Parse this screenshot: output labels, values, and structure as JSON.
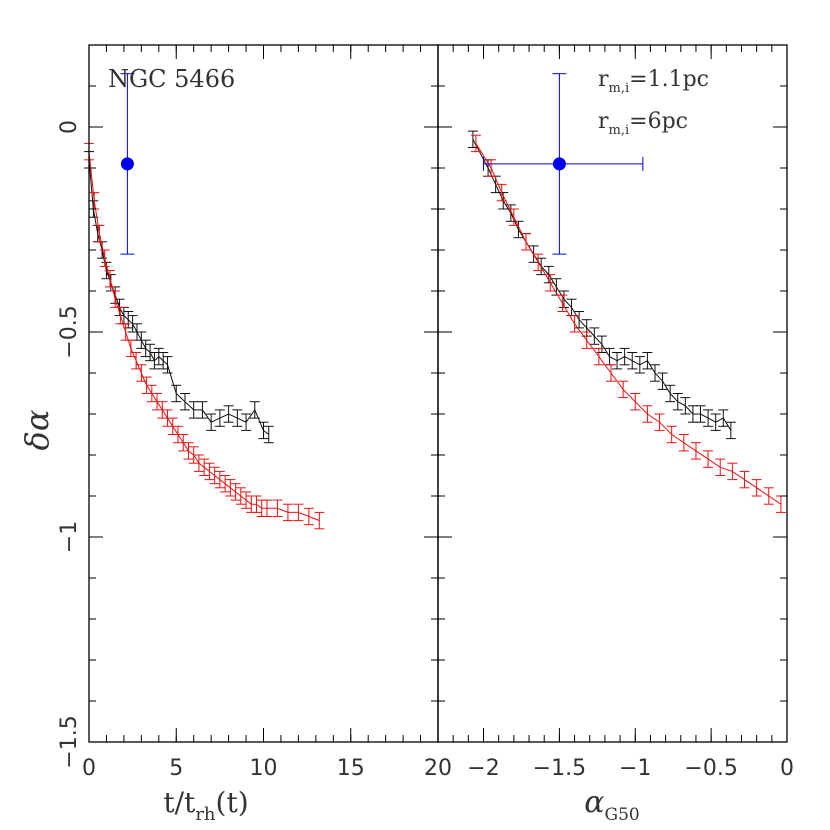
{
  "chart_data": [
    {
      "type": "line",
      "panel": "left",
      "annotation": "NGC 5466",
      "xlabel_main": "t/t",
      "xlabel_sub": "rh",
      "xlabel_tail": "(t)",
      "ylabel_main": "δα",
      "xlim": [
        0,
        20
      ],
      "ylim": [
        -1.5,
        0.2
      ],
      "xticks": [
        0,
        5,
        10,
        15,
        20
      ],
      "yticks": [
        0,
        -0.5,
        -1,
        -1.5
      ],
      "xtick_labels": [
        "0",
        "5",
        "10",
        "15",
        "20"
      ],
      "ytick_labels": [
        "0",
        "−0.5",
        "−1",
        "−1.5"
      ],
      "grid": false,
      "observed_point": {
        "x": 2.2,
        "y": -0.09,
        "yerr_low": 0.22,
        "yerr_high": 0.22,
        "color": "#0000ee"
      },
      "series": [
        {
          "color": "#111111",
          "x": [
            0,
            0.25,
            0.5,
            0.75,
            1.0,
            1.25,
            1.5,
            1.75,
            2.0,
            2.25,
            2.5,
            2.75,
            3.0,
            3.25,
            3.5,
            3.75,
            4.0,
            4.25,
            4.5,
            5.0,
            5.5,
            6.0,
            6.5,
            7.0,
            7.5,
            8.0,
            8.5,
            9.0,
            9.5,
            10.0,
            10.3
          ],
          "y": [
            -0.08,
            -0.2,
            -0.26,
            -0.3,
            -0.35,
            -0.38,
            -0.41,
            -0.44,
            -0.46,
            -0.47,
            -0.48,
            -0.5,
            -0.52,
            -0.54,
            -0.55,
            -0.57,
            -0.56,
            -0.57,
            -0.58,
            -0.65,
            -0.67,
            -0.69,
            -0.69,
            -0.72,
            -0.71,
            -0.7,
            -0.71,
            -0.72,
            -0.69,
            -0.74,
            -0.75
          ],
          "yerr": 0.02
        },
        {
          "color": "#ee1111",
          "x": [
            0,
            0.3,
            0.6,
            0.9,
            1.2,
            1.5,
            1.8,
            2.1,
            2.4,
            2.7,
            3.0,
            3.3,
            3.6,
            3.9,
            4.2,
            4.5,
            4.8,
            5.1,
            5.4,
            5.7,
            6.0,
            6.3,
            6.6,
            6.9,
            7.2,
            7.5,
            7.8,
            8.1,
            8.4,
            8.7,
            9.0,
            9.3,
            9.6,
            9.9,
            10.2,
            10.8,
            11.4,
            12.0,
            12.6,
            13.2
          ],
          "y": [
            -0.06,
            -0.18,
            -0.26,
            -0.32,
            -0.37,
            -0.42,
            -0.46,
            -0.5,
            -0.54,
            -0.57,
            -0.6,
            -0.63,
            -0.65,
            -0.67,
            -0.69,
            -0.71,
            -0.73,
            -0.75,
            -0.77,
            -0.79,
            -0.8,
            -0.82,
            -0.83,
            -0.84,
            -0.85,
            -0.86,
            -0.87,
            -0.88,
            -0.89,
            -0.9,
            -0.91,
            -0.92,
            -0.92,
            -0.93,
            -0.93,
            -0.93,
            -0.94,
            -0.94,
            -0.95,
            -0.96
          ],
          "yerr": 0.02
        }
      ]
    },
    {
      "type": "line",
      "panel": "right",
      "xlabel_main": "α",
      "xlabel_sub": "G50",
      "xlim": [
        -2.3,
        0
      ],
      "ylim": [
        -1.5,
        0.2
      ],
      "xticks": [
        -2,
        -1.5,
        -1,
        -0.5,
        0
      ],
      "xtick_labels": [
        "−2",
        "−1.5",
        "−1",
        "−0.5",
        "0"
      ],
      "grid": false,
      "legend_placement": "top-right",
      "legend": [
        {
          "main": "r",
          "sub": "m,i",
          "tail": "=1.1pc",
          "color": "#ee1111"
        },
        {
          "main": "r",
          "sub": "m,i",
          "tail": "=6pc",
          "color": "#333333"
        }
      ],
      "observed_point": {
        "x": -1.5,
        "y": -0.09,
        "xerr_low": 0.5,
        "xerr_high": 0.55,
        "yerr_low": 0.22,
        "yerr_high": 0.22,
        "color": "#0000ee"
      },
      "series": [
        {
          "color": "#111111",
          "x": [
            -2.07,
            -1.97,
            -1.92,
            -1.87,
            -1.82,
            -1.77,
            -1.72,
            -1.67,
            -1.62,
            -1.57,
            -1.52,
            -1.47,
            -1.42,
            -1.37,
            -1.32,
            -1.27,
            -1.22,
            -1.17,
            -1.12,
            -1.07,
            -1.02,
            -0.97,
            -0.92,
            -0.87,
            -0.82,
            -0.77,
            -0.72,
            -0.67,
            -0.62,
            -0.57,
            -0.52,
            -0.47,
            -0.42,
            -0.37
          ],
          "y": [
            -0.03,
            -0.1,
            -0.14,
            -0.18,
            -0.21,
            -0.25,
            -0.28,
            -0.31,
            -0.34,
            -0.36,
            -0.39,
            -0.42,
            -0.44,
            -0.47,
            -0.49,
            -0.51,
            -0.53,
            -0.56,
            -0.57,
            -0.56,
            -0.57,
            -0.58,
            -0.57,
            -0.6,
            -0.62,
            -0.65,
            -0.67,
            -0.68,
            -0.7,
            -0.7,
            -0.71,
            -0.72,
            -0.71,
            -0.74
          ],
          "yerr": 0.02
        },
        {
          "color": "#ee1111",
          "x": [
            -2.05,
            -1.95,
            -1.88,
            -1.8,
            -1.72,
            -1.64,
            -1.56,
            -1.48,
            -1.4,
            -1.32,
            -1.24,
            -1.16,
            -1.08,
            -1.0,
            -0.92,
            -0.84,
            -0.76,
            -0.68,
            -0.6,
            -0.52,
            -0.44,
            -0.36,
            -0.28,
            -0.2,
            -0.12,
            -0.04
          ],
          "y": [
            -0.04,
            -0.1,
            -0.16,
            -0.22,
            -0.28,
            -0.33,
            -0.38,
            -0.43,
            -0.48,
            -0.52,
            -0.56,
            -0.6,
            -0.64,
            -0.67,
            -0.7,
            -0.72,
            -0.75,
            -0.77,
            -0.79,
            -0.81,
            -0.83,
            -0.84,
            -0.86,
            -0.88,
            -0.9,
            -0.92
          ],
          "yerr": 0.02
        }
      ]
    }
  ]
}
